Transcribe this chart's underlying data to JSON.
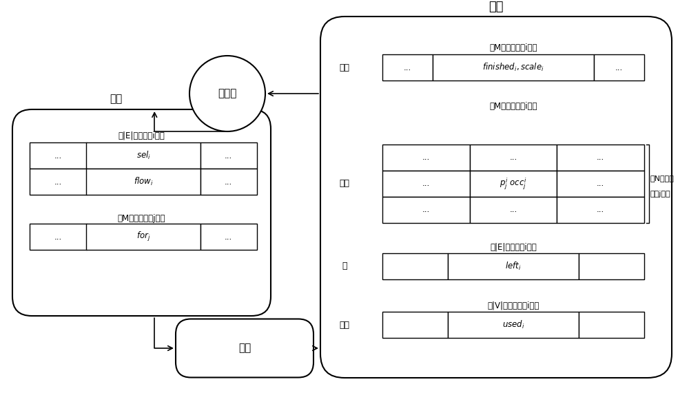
{
  "title_zhuangtai": "状态",
  "title_dongzuo": "动作",
  "agent_label": "智能体",
  "env_label": "环境",
  "demand_label": "需求",
  "path_label": "路径",
  "edge_label": "边",
  "node_label": "节点",
  "subtitle_demand1": "共M条需求（第i个）",
  "subtitle_demand2": "共M条需求（第i个）",
  "subtitle_edge_action": "共|E|条边（第i个）",
  "subtitle_demand_action": "共M条需求（第j个）",
  "subtitle_edge_state": "共|E|条边（第i个）",
  "subtitle_node_state": "共|V|个节点（第i个）",
  "subtitle_path1": "共N条路径",
  "subtitle_path2": "（第j条）",
  "bg_color": "#ffffff",
  "border_color": "#000000"
}
